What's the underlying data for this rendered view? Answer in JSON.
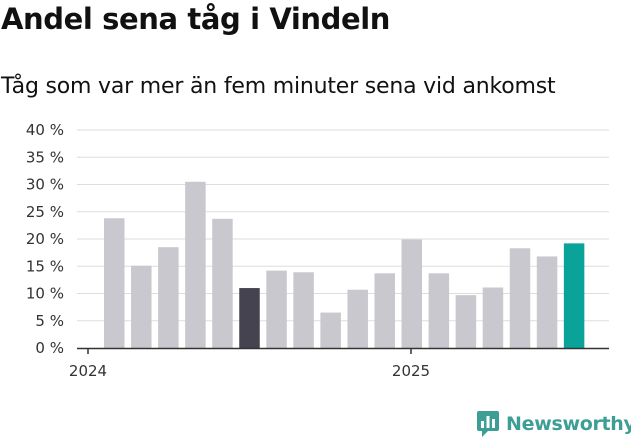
{
  "header": {
    "title": "Andel sena tåg i Vindeln",
    "subtitle": "Tåg som var mer än fem minuter sena vid ankomst"
  },
  "logo": {
    "text": "Newsworthy",
    "icon": "bar-chart-badge-icon",
    "color": "#3d9e96"
  },
  "colors": {
    "bar": "#c9c8ce",
    "highlight_dark": "#44434f",
    "highlight_latest": "#0aa39a",
    "grid": "#dddddd",
    "axis": "#333333"
  },
  "chart_data": {
    "type": "bar",
    "title": "Andel sena tåg i Vindeln",
    "subtitle": "Tåg som var mer än fem minuter sena vid ankomst",
    "xlabel": "",
    "ylabel": "",
    "ylim": [
      0,
      40
    ],
    "yticks": [
      0,
      5,
      10,
      15,
      20,
      25,
      30,
      35,
      40
    ],
    "ytick_labels": [
      "0 %",
      "5 %",
      "10 %",
      "15 %",
      "20 %",
      "25 %",
      "30 %",
      "35 %",
      "40 %"
    ],
    "xtick_labels": [
      "2024",
      "2025"
    ],
    "grid": true,
    "categories": [
      "2024-01",
      "2024-02",
      "2024-03",
      "2024-04",
      "2024-05",
      "2024-06",
      "2024-07",
      "2024-08",
      "2024-09",
      "2024-10",
      "2024-11",
      "2024-12",
      "2025-01",
      "2025-02",
      "2025-03",
      "2025-04",
      "2025-05",
      "2025-06"
    ],
    "values": [
      23.8,
      15.1,
      18.5,
      30.5,
      23.7,
      11.0,
      14.2,
      13.9,
      6.5,
      10.7,
      13.7,
      19.9,
      13.7,
      9.7,
      11.1,
      18.3,
      16.8,
      19.2
    ],
    "highlight": {
      "2024-06": "highlight_dark",
      "2025-06": "highlight_latest"
    }
  }
}
